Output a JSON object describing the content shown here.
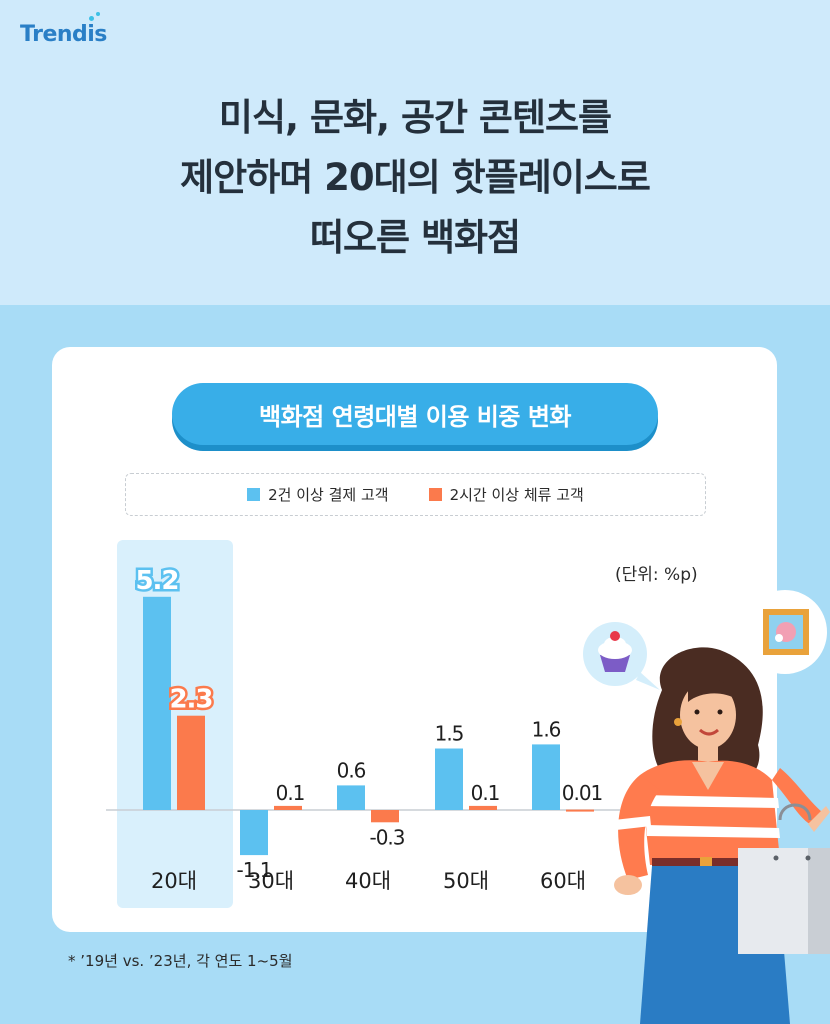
{
  "brand": {
    "logo_text": "Trendis"
  },
  "headline": {
    "lines": [
      "미식, 문화, 공간 콘텐츠를",
      "제안하며 20대의 핫플레이스로",
      "떠오른 백화점"
    ]
  },
  "colors": {
    "background": "#a8dcf6",
    "header_band": "#cfeafb",
    "series_blue": "#5cc1f0",
    "series_orange": "#fb7a4c",
    "pill": "#38aee8"
  },
  "chart_data": {
    "type": "bar",
    "title": "백화점 연령대별 이용 비중 변화",
    "unit_label": "(단위: %p)",
    "categories": [
      "20대",
      "30대",
      "40대",
      "50대",
      "60대"
    ],
    "series": [
      {
        "name": "2건 이상 결제 고객",
        "values": [
          5.2,
          -1.1,
          0.6,
          1.5,
          1.6
        ],
        "labels": [
          "5.2",
          "-1.1",
          "0.6",
          "1.5",
          "1.6"
        ],
        "color": "#5cc1f0"
      },
      {
        "name": "2시간 이상 체류 고객",
        "values": [
          2.3,
          0.1,
          -0.3,
          0.1,
          0.01
        ],
        "labels": [
          "2.3",
          "0.1",
          "-0.3",
          "0.1",
          "0.01"
        ],
        "color": "#fb7a4c"
      }
    ],
    "highlighted_category": "20대",
    "legend_position": "top",
    "grid": false
  },
  "footnote": "*  ’19년 vs. ’23년, 각 연도 1~5월"
}
